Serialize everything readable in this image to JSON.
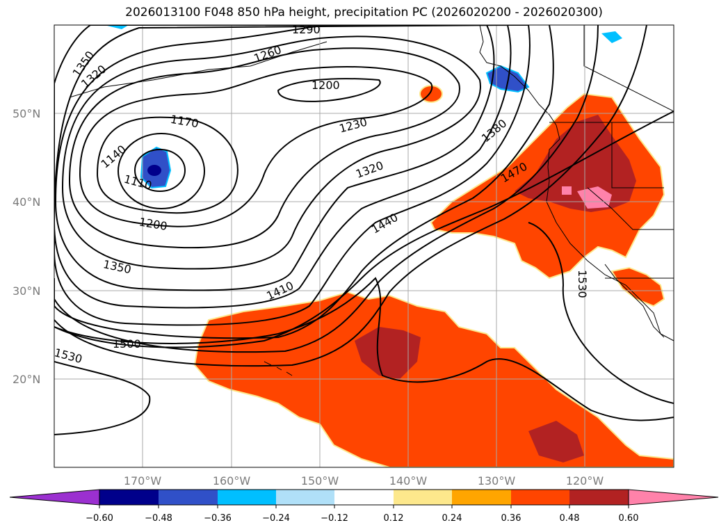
{
  "title": "2026013100 F048 850 hPa height, precipitation PC (2026020200 - 2026020300)",
  "map": {
    "lat_labels": [
      "50°N",
      "40°N",
      "30°N",
      "20°N"
    ],
    "lon_labels": [
      "170°W",
      "160°W",
      "150°W",
      "140°W",
      "130°W",
      "120°W"
    ],
    "extent": {
      "lon_min": -180,
      "lon_max": -110,
      "lat_min": 10,
      "lat_max": 60
    },
    "grid": true
  },
  "contour_labels": [
    "1290",
    "1350",
    "1320",
    "1260",
    "1200",
    "1170",
    "1140",
    "1110",
    "1230",
    "1320",
    "1380",
    "1470",
    "1440",
    "1200",
    "1350",
    "1410",
    "1530",
    "1500",
    "1530"
  ],
  "colorbar": {
    "ticks": [
      "−0.60",
      "−0.48",
      "−0.36",
      "−0.24",
      "−0.12",
      "0.12",
      "0.24",
      "0.36",
      "0.48",
      "0.60"
    ],
    "colors": [
      "#9b30d0",
      "#00008b",
      "#3050c8",
      "#00bfff",
      "#b0e0f8",
      "#ffffff",
      "#fde88c",
      "#ffa500",
      "#ff4500",
      "#b22222",
      "#ff82aa",
      "#ff82aa"
    ],
    "extend": "both"
  }
}
